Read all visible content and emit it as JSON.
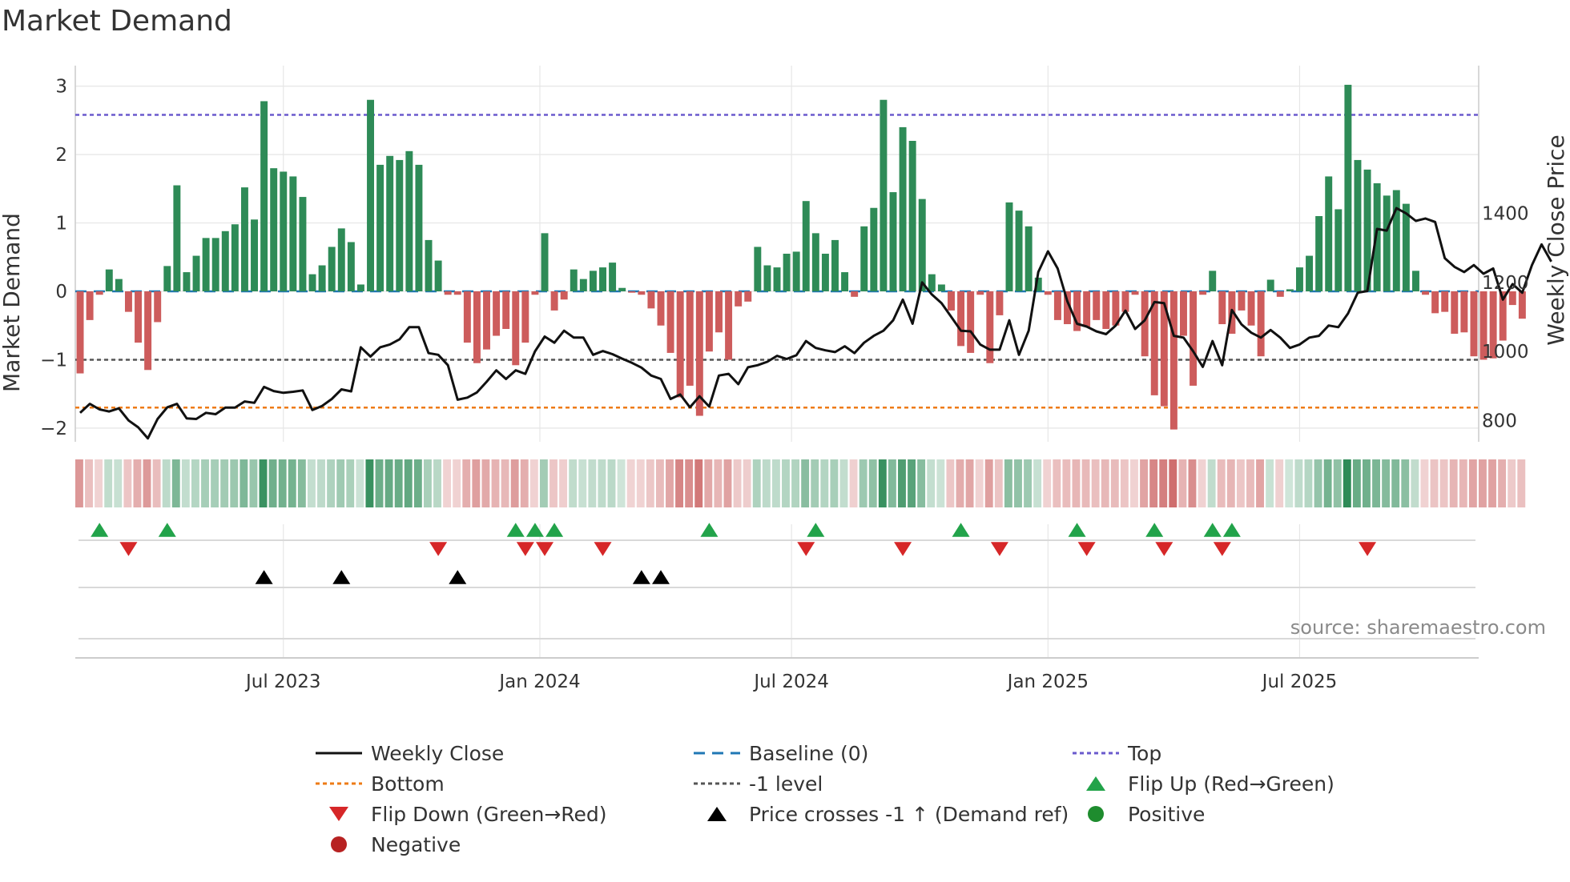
{
  "chart_data": {
    "type": "bar",
    "title": "Market Demand",
    "ylabel_left": "Market Demand",
    "ylabel_right": "Weekly Close Price",
    "source": "source: sharemaestro.com",
    "y_left": {
      "range": [
        -2.2,
        3.3
      ],
      "ticks": [
        3,
        2,
        1,
        0,
        -1,
        -2
      ],
      "tick_labels": [
        "3",
        "2",
        "1",
        "0",
        "−1",
        "−2"
      ]
    },
    "y_right": {
      "range": [
        738,
        1828
      ],
      "ticks": [
        1400,
        1200,
        1000,
        800
      ],
      "tick_labels": [
        "1400",
        "1200",
        "1000",
        "800"
      ]
    },
    "x_range": [
      0,
      144
    ],
    "x_ticks": [
      {
        "week": 21,
        "label": "Jul 2023"
      },
      {
        "week": 47.5,
        "label": "Jan 2024"
      },
      {
        "week": 73.5,
        "label": "Jul 2024"
      },
      {
        "week": 100,
        "label": "Jan 2025"
      },
      {
        "week": 126,
        "label": "Jul 2025"
      }
    ],
    "reference_lines": {
      "top": 2.58,
      "bottom": -1.7,
      "minus_one": -1,
      "baseline": 0
    },
    "demand": [
      -1.2,
      -0.42,
      -0.05,
      0.32,
      0.18,
      -0.3,
      -0.75,
      -1.15,
      -0.45,
      0.37,
      1.55,
      0.28,
      0.52,
      0.78,
      0.78,
      0.88,
      0.98,
      1.52,
      1.05,
      2.78,
      1.8,
      1.75,
      1.68,
      1.38,
      0.25,
      0.38,
      0.65,
      0.92,
      0.72,
      0.1,
      2.8,
      1.85,
      1.98,
      1.92,
      2.05,
      1.85,
      0.75,
      0.45,
      -0.05,
      -0.05,
      -0.75,
      -1.05,
      -0.85,
      -0.65,
      -0.55,
      -1.08,
      -0.75,
      -0.05,
      0.85,
      -0.28,
      -0.12,
      0.32,
      0.18,
      0.3,
      0.35,
      0.42,
      0.05,
      -0.02,
      -0.05,
      -0.25,
      -0.5,
      -0.9,
      -1.55,
      -1.38,
      -1.82,
      -0.88,
      -0.6,
      -1.0,
      -0.22,
      -0.15,
      0.65,
      0.38,
      0.35,
      0.55,
      0.58,
      1.32,
      0.85,
      0.55,
      0.75,
      0.28,
      -0.08,
      0.95,
      1.22,
      2.8,
      1.45,
      2.4,
      2.2,
      1.35,
      0.25,
      0.1,
      -0.28,
      -0.8,
      -0.9,
      -0.05,
      -1.05,
      -0.35,
      1.3,
      1.18,
      0.95,
      0.2,
      -0.05,
      -0.42,
      -0.48,
      -0.58,
      -0.52,
      -0.42,
      -0.55,
      -0.5,
      -0.3,
      -0.05,
      -0.95,
      -1.52,
      -1.68,
      -2.02,
      -0.65,
      -1.38,
      -0.05,
      0.3,
      -0.48,
      -0.62,
      -0.28,
      -0.5,
      -0.95,
      0.17,
      -0.08,
      0.03,
      0.35,
      0.52,
      1.1,
      1.68,
      1.2,
      3.02,
      1.92,
      1.78,
      1.58,
      1.4,
      1.48,
      1.28,
      0.3,
      -0.05,
      -0.32,
      -0.3,
      -0.62,
      -0.6,
      -0.95,
      -1.0,
      -0.98,
      -0.72,
      -0.2,
      -0.4
    ],
    "weekly_close": [
      822,
      848,
      832,
      826,
      835,
      800,
      780,
      748,
      804,
      838,
      848,
      806,
      804,
      822,
      818,
      837,
      837,
      855,
      851,
      897,
      885,
      880,
      883,
      887,
      830,
      842,
      862,
      890,
      884,
      1012,
      985,
      1012,
      1020,
      1035,
      1070,
      1070,
      995,
      990,
      960,
      860,
      866,
      881,
      912,
      945,
      920,
      945,
      935,
      1000,
      1043,
      1025,
      1060,
      1040,
      1040,
      990,
      1001,
      992,
      979,
      967,
      953,
      930,
      920,
      862,
      875,
      838,
      870,
      840,
      930,
      935,
      905,
      954,
      960,
      970,
      987,
      978,
      989,
      1030,
      1010,
      1003,
      998,
      1015,
      995,
      1025,
      1045,
      1060,
      1090,
      1150,
      1080,
      1200,
      1165,
      1140,
      1100,
      1060,
      1058,
      1020,
      1005,
      1005,
      1090,
      990,
      1060,
      1230,
      1290,
      1240,
      1145,
      1080,
      1072,
      1058,
      1050,
      1075,
      1118,
      1065,
      1090,
      1143,
      1140,
      1045,
      1040,
      1000,
      955,
      1030,
      960,
      1120,
      1078,
      1054,
      1040,
      1062,
      1040,
      1010,
      1020,
      1040,
      1045,
      1075,
      1070,
      1110,
      1170,
      1175,
      1355,
      1350,
      1415,
      1400,
      1378,
      1385,
      1375,
      1270,
      1245,
      1230,
      1250,
      1225,
      1240,
      1150,
      1195,
      1170,
      1250,
      1310,
      1260
    ],
    "intensity_strip": "one colored cell per week; green shades for positive demand, red shades for negative demand, darker = stronger",
    "flip_up_weeks": [
      2,
      9,
      45,
      47,
      49,
      65,
      76,
      91,
      103,
      111,
      117,
      119
    ],
    "flip_down_weeks": [
      5,
      37,
      46,
      48,
      54,
      75,
      85,
      95,
      104,
      112,
      118,
      133
    ],
    "price_cross_weeks": [
      19,
      27,
      39,
      58,
      60
    ]
  },
  "legend": [
    {
      "label": "Weekly Close",
      "kind": "line",
      "color": "#111111",
      "dash": ""
    },
    {
      "label": "Baseline (0)",
      "kind": "line",
      "color": "#1f77b4",
      "dash": "14,9"
    },
    {
      "label": "Top",
      "kind": "line",
      "color": "#6a5acd",
      "dash": "5,4"
    },
    {
      "label": "Bottom",
      "kind": "line",
      "color": "#ee7b16",
      "dash": "5,4"
    },
    {
      "label": "-1 level",
      "kind": "line",
      "color": "#555555",
      "dash": "5,4"
    },
    {
      "label": "Flip Up (Red→Green)",
      "kind": "triangle-up",
      "color": "#22a34a"
    },
    {
      "label": "Flip Down (Green→Red)",
      "kind": "triangle-down",
      "color": "#d62728"
    },
    {
      "label": "Price crosses -1 ↑ (Demand ref)",
      "kind": "triangle-up",
      "color": "#000000"
    },
    {
      "label": "Positive",
      "kind": "circle",
      "color": "#1e8c2e"
    },
    {
      "label": "Negative",
      "kind": "circle",
      "color": "#b72222"
    }
  ],
  "colors": {
    "positive_bar": "#2e8b57",
    "negative_bar": "#cd5c5c",
    "grid": "#e6e6e6",
    "axis": "#cccccc",
    "strip_positive_rgb": [
      46,
      139,
      87
    ],
    "strip_negative_rgb": [
      190,
      60,
      60
    ]
  }
}
